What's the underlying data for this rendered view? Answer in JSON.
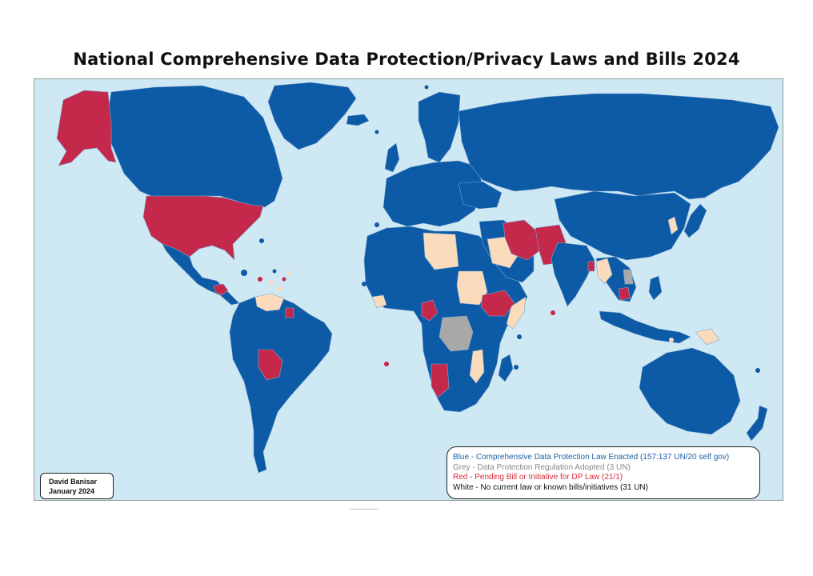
{
  "title": "National Comprehensive Data Protection/Privacy Laws and Bills 2024",
  "author": {
    "name": "David Banisar",
    "date": "January 2024"
  },
  "legend": {
    "blue": "Blue - Comprehensive Data Protection Law Enacted (157:137 UN/20 self gov)",
    "grey": "Grey - Data Protection Regulation Adopted (3 UN)",
    "red": "Red -  Pending Bill or Initiative for DP Law (21/1)",
    "white": "White - No current law or known bills/initiatives (31 UN)"
  },
  "colors": {
    "ocean": "#cfe9f4",
    "law_enacted": "#0d5aa6",
    "regulation_adopted": "#a8a8a8",
    "pending_bill": "#c4284a",
    "no_law": "#fadcbd",
    "border": "#7fa6cf"
  }
}
